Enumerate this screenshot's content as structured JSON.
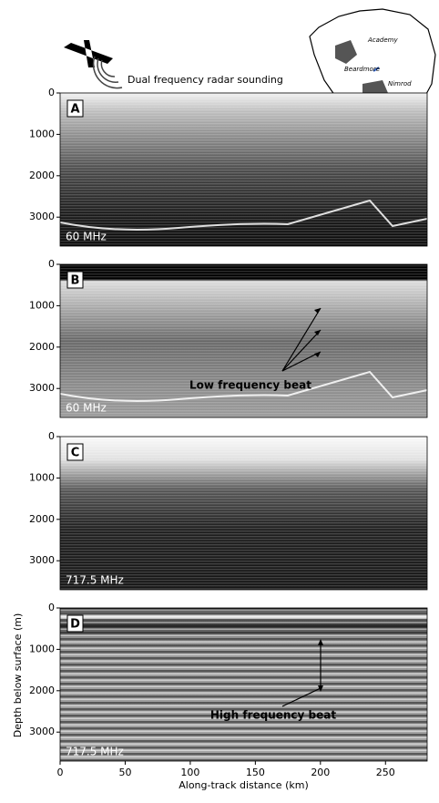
{
  "header": {
    "caption": "Dual frequency radar sounding",
    "map_labels": [
      "Academy",
      "Beardmore",
      "Nimrod"
    ]
  },
  "chart_data": [
    {
      "type": "radargram",
      "panel": "A",
      "frequency": "60 MHz",
      "xlim": [
        0,
        282
      ],
      "ylim": [
        3700,
        0
      ],
      "yticks": [
        0,
        1000,
        2000,
        3000
      ]
    },
    {
      "type": "radargram",
      "panel": "B",
      "frequency": "60 MHz",
      "annotation": "Low frequency beat",
      "xlim": [
        0,
        282
      ],
      "ylim": [
        3700,
        0
      ],
      "yticks": [
        0,
        1000,
        2000,
        3000
      ]
    },
    {
      "type": "radargram",
      "panel": "C",
      "frequency": "717.5 MHz",
      "xlim": [
        0,
        282
      ],
      "ylim": [
        3700,
        0
      ],
      "yticks": [
        0,
        1000,
        2000,
        3000
      ]
    },
    {
      "type": "radargram",
      "panel": "D",
      "frequency": "717.5 MHz",
      "annotation": "High frequency beat",
      "xlim": [
        0,
        282
      ],
      "ylim": [
        3700,
        0
      ],
      "yticks": [
        0,
        1000,
        2000,
        3000
      ],
      "xticks": [
        0,
        50,
        100,
        150,
        200,
        250
      ],
      "xlabel": "Along-track distance (km)",
      "ylabel": "Depth below surface (m)"
    }
  ]
}
